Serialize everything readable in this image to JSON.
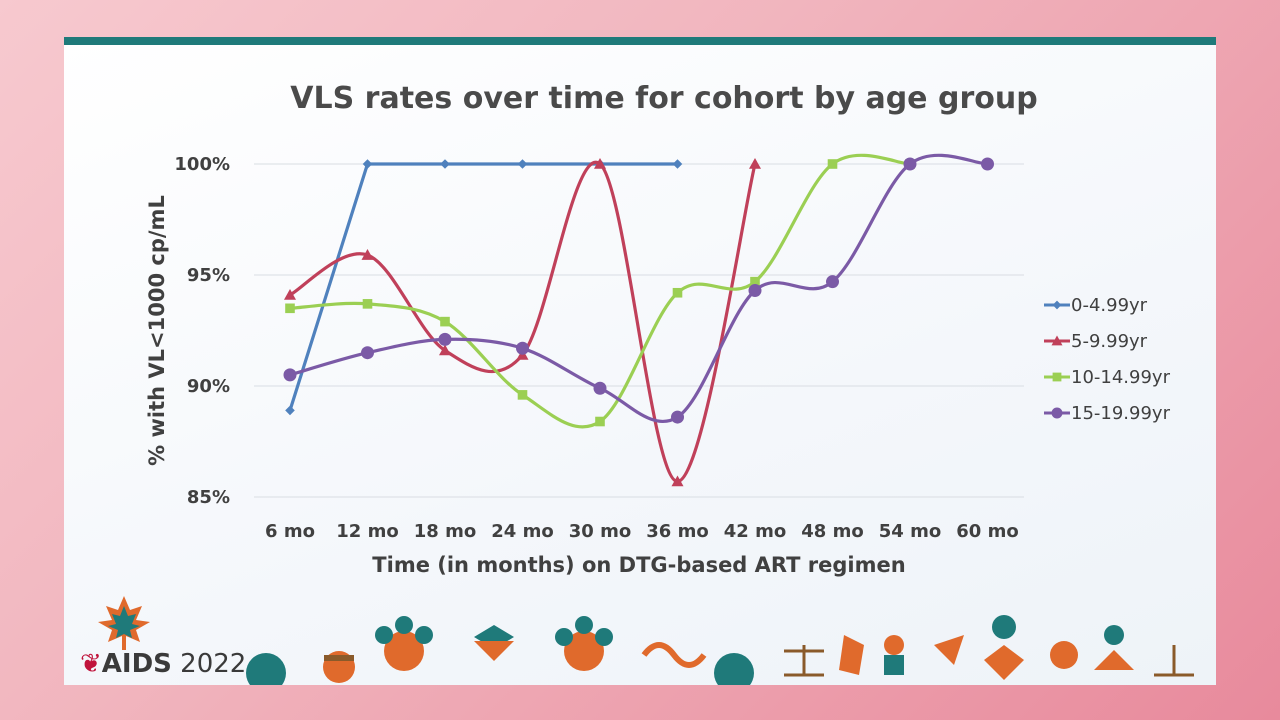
{
  "chart_data": {
    "type": "line",
    "title": "VLS rates over time for cohort by age group",
    "xlabel": "Time (in months) on DTG-based ART regimen",
    "ylabel": "% with VL<1000 cp/mL",
    "categories": [
      "6 mo",
      "12 mo",
      "18 mo",
      "24 mo",
      "30 mo",
      "36 mo",
      "42 mo",
      "48 mo",
      "54 mo",
      "60 mo"
    ],
    "ylim": [
      85,
      100
    ],
    "yticks": [
      {
        "value": 85,
        "label": "85%"
      },
      {
        "value": 90,
        "label": "90%"
      },
      {
        "value": 95,
        "label": "95%"
      },
      {
        "value": 100,
        "label": "100%"
      }
    ],
    "grid": true,
    "legend_position": "right",
    "series": [
      {
        "name": "0-4.99yr",
        "color": "#4f81bd",
        "marker": "diamond",
        "smooth": false,
        "values": [
          88.9,
          100,
          100,
          100,
          100,
          100,
          null,
          null,
          null,
          null
        ]
      },
      {
        "name": "5-9.99yr",
        "color": "#c0405a",
        "marker": "triangle",
        "smooth": true,
        "values": [
          94.1,
          95.9,
          91.6,
          91.4,
          100,
          85.7,
          100,
          null,
          null,
          null
        ]
      },
      {
        "name": "10-14.99yr",
        "color": "#9bcf53",
        "marker": "square",
        "smooth": true,
        "values": [
          93.5,
          93.7,
          92.9,
          89.6,
          88.4,
          94.2,
          94.7,
          100,
          100,
          null
        ]
      },
      {
        "name": "15-19.99yr",
        "color": "#7b5aa6",
        "marker": "circle",
        "smooth": true,
        "values": [
          90.5,
          91.5,
          92.1,
          91.7,
          89.9,
          88.6,
          94.3,
          94.7,
          100,
          100
        ]
      }
    ]
  },
  "branding": {
    "event_name": "AIDS",
    "event_year": "2022"
  }
}
